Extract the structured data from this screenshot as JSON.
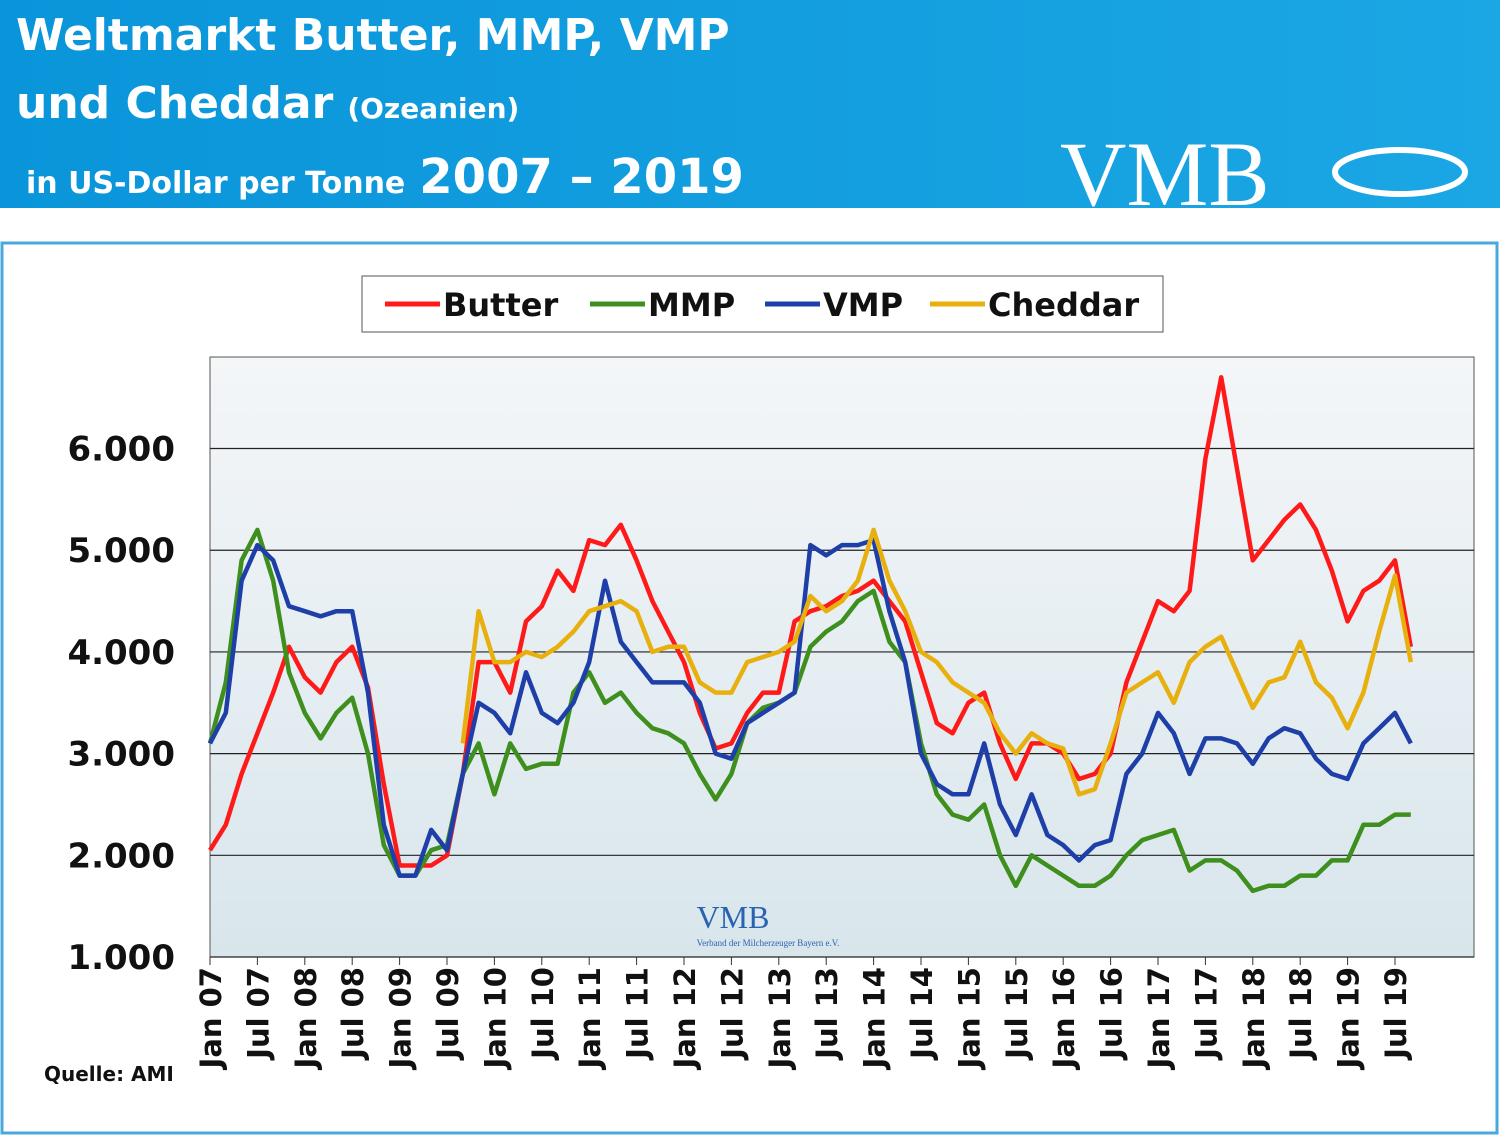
{
  "header": {
    "title_line1": "Weltmarkt Butter, MMP, VMP",
    "title_line2": "und Cheddar",
    "title_region": "(Ozeanien)",
    "subtitle": "in US-Dollar per Tonne",
    "years": "2007 – 2019",
    "logo": "VMB"
  },
  "source": "Quelle: AMI",
  "watermark": {
    "logo": "VMB",
    "text": "Verband der Milcherzeuger Bayern e.V."
  },
  "chart_data": {
    "type": "line",
    "categories": [
      "Jan 07",
      null,
      null,
      "Jul 07",
      null,
      null,
      "Jan 08",
      null,
      null,
      "Jul 08",
      null,
      null,
      "Jan 09",
      null,
      null,
      "Jul 09",
      null,
      null,
      "Jan 10",
      null,
      null,
      "Jul 10",
      null,
      null,
      "Jan 11",
      null,
      null,
      "Jul 11",
      null,
      null,
      "Jan 12",
      null,
      null,
      "Jul 12",
      null,
      null,
      "Jan 13",
      null,
      null,
      "Jul 13",
      null,
      null,
      "Jan 14",
      null,
      null,
      "Jul 14",
      null,
      null,
      "Jan 15",
      null,
      null,
      "Jul 15",
      null,
      null,
      "Jan 16",
      null,
      null,
      "Jul 16",
      null,
      null,
      "Jan 17",
      null,
      null,
      "Jul 17",
      null,
      null,
      "Jan 18",
      null,
      null,
      "Jul 18",
      null,
      null,
      "Jan 19",
      null,
      null,
      "Jul 19",
      null,
      null,
      null
    ],
    "series": [
      {
        "name": "Butter",
        "color": "#ff1a1a",
        "values": [
          2050,
          2300,
          2800,
          3200,
          3600,
          4050,
          3750,
          3600,
          3900,
          4050,
          3650,
          2700,
          1900,
          1900,
          1900,
          2000,
          2800,
          3900,
          3900,
          3600,
          4300,
          4450,
          4800,
          4600,
          5100,
          5050,
          5250,
          4900,
          4500,
          4200,
          3900,
          3400,
          3050,
          3100,
          3400,
          3600,
          3600,
          4300,
          4400,
          4450,
          4550,
          4600,
          4700,
          4500,
          4300,
          3800,
          3300,
          3200,
          3500,
          3600,
          3100,
          2750,
          3100,
          3100,
          3000,
          2750,
          2800,
          3000,
          3700,
          4100,
          4500,
          4400,
          4600,
          5900,
          6700,
          5800,
          4900,
          5100,
          5300,
          5450,
          5200,
          4800,
          4300,
          4600,
          4700,
          4900,
          4050,
          null,
          null
        ]
      },
      {
        "name": "MMP",
        "color": "#3f8f1f",
        "values": [
          3100,
          3700,
          4900,
          5200,
          4700,
          3800,
          3400,
          3150,
          3400,
          3550,
          3000,
          2100,
          1800,
          1800,
          2050,
          2100,
          2800,
          3100,
          2600,
          3100,
          2850,
          2900,
          2900,
          3600,
          3800,
          3500,
          3600,
          3400,
          3250,
          3200,
          3100,
          2800,
          2550,
          2800,
          3300,
          3450,
          3500,
          3600,
          4050,
          4200,
          4300,
          4500,
          4600,
          4100,
          3900,
          3100,
          2600,
          2400,
          2350,
          2500,
          2000,
          1700,
          2000,
          1900,
          1800,
          1700,
          1700,
          1800,
          2000,
          2150,
          2200,
          2250,
          1850,
          1950,
          1950,
          1850,
          1650,
          1700,
          1700,
          1800,
          1800,
          1950,
          1950,
          2300,
          2300,
          2400,
          2400,
          null,
          null
        ]
      },
      {
        "name": "VMP",
        "color": "#1f3fa8",
        "values": [
          3100,
          3400,
          4700,
          5050,
          4900,
          4450,
          4400,
          4350,
          4400,
          4400,
          3600,
          2300,
          1800,
          1800,
          2250,
          2050,
          2800,
          3500,
          3400,
          3200,
          3800,
          3400,
          3300,
          3500,
          3900,
          4700,
          4100,
          3900,
          3700,
          3700,
          3700,
          3500,
          3000,
          2950,
          3300,
          3400,
          3500,
          3600,
          5050,
          4950,
          5050,
          5050,
          5100,
          4400,
          3900,
          3000,
          2700,
          2600,
          2600,
          3100,
          2500,
          2200,
          2600,
          2200,
          2100,
          1950,
          2100,
          2150,
          2800,
          3000,
          3400,
          3200,
          2800,
          3150,
          3150,
          3100,
          2900,
          3150,
          3250,
          3200,
          2950,
          2800,
          2750,
          3100,
          3250,
          3400,
          3100,
          null,
          null
        ]
      },
      {
        "name": "Cheddar",
        "color": "#e8b00f",
        "values": [
          null,
          null,
          null,
          null,
          null,
          null,
          null,
          null,
          null,
          null,
          null,
          null,
          null,
          null,
          null,
          null,
          3100,
          4400,
          3900,
          3900,
          4000,
          3950,
          4050,
          4200,
          4400,
          4450,
          4500,
          4400,
          4000,
          4050,
          4050,
          3700,
          3600,
          3600,
          3900,
          3950,
          4000,
          4100,
          4550,
          4400,
          4500,
          4700,
          5200,
          4700,
          4400,
          4000,
          3900,
          3700,
          3600,
          3500,
          3200,
          3000,
          3200,
          3100,
          3050,
          2600,
          2650,
          3100,
          3600,
          3700,
          3800,
          3500,
          3900,
          4050,
          4150,
          3800,
          3450,
          3700,
          3750,
          4100,
          3700,
          3550,
          3250,
          3600,
          4200,
          4750,
          3900,
          null,
          null
        ]
      }
    ],
    "ylim": [
      1000,
      6900
    ],
    "yticks": [
      {
        "value": 1000,
        "label": "1.000"
      },
      {
        "value": 2000,
        "label": "2.000"
      },
      {
        "value": 3000,
        "label": "3.000"
      },
      {
        "value": 4000,
        "label": "4.000"
      },
      {
        "value": 5000,
        "label": "5.000"
      },
      {
        "value": 6000,
        "label": "6.000"
      }
    ],
    "grid": true
  }
}
